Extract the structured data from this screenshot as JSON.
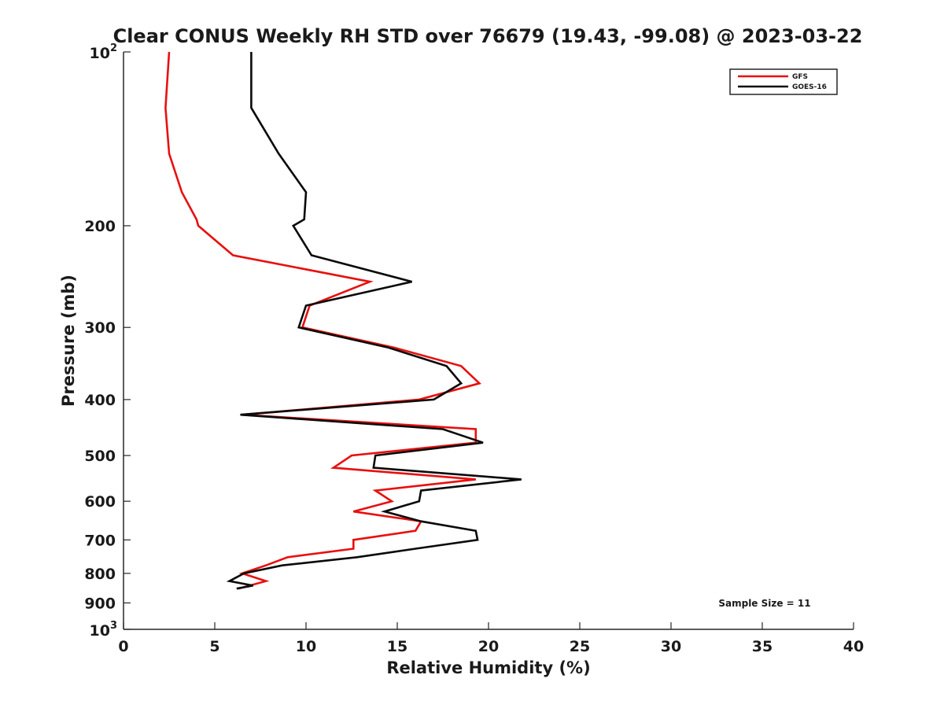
{
  "chart_data": {
    "type": "line",
    "title": "Clear CONUS Weekly RH STD over 76679 (19.43, -99.08) @ 2023-03-22",
    "xlabel": "Relative Humidity (%)",
    "ylabel": "Pressure (mb)",
    "xlim": [
      0,
      40
    ],
    "ylim": [
      100,
      1000
    ],
    "y_scale": "log",
    "y_reversed": true,
    "grid": false,
    "legend_position": "top-right",
    "x_ticks": [
      0,
      5,
      10,
      15,
      20,
      25,
      30,
      35,
      40
    ],
    "y_ticks": [
      {
        "value": 100,
        "base": "10",
        "exp": "2"
      },
      {
        "value": 200,
        "text": "200"
      },
      {
        "value": 300,
        "text": "300"
      },
      {
        "value": 400,
        "text": "400"
      },
      {
        "value": 500,
        "text": "500"
      },
      {
        "value": 600,
        "text": "600"
      },
      {
        "value": 700,
        "text": "700"
      },
      {
        "value": 800,
        "text": "800"
      },
      {
        "value": 900,
        "text": "900"
      },
      {
        "value": 1000,
        "base": "10",
        "exp": "3"
      }
    ],
    "annotation": "Sample Size = 11",
    "series": [
      {
        "name": "GFS",
        "color": "#e8100f",
        "points": [
          [
            2.5,
            100
          ],
          [
            2.3,
            125
          ],
          [
            2.5,
            150
          ],
          [
            3.2,
            175
          ],
          [
            4.0,
            195
          ],
          [
            4.1,
            200
          ],
          [
            6.0,
            225
          ],
          [
            13.5,
            250
          ],
          [
            10.2,
            275
          ],
          [
            9.8,
            300
          ],
          [
            14.8,
            325
          ],
          [
            18.5,
            350
          ],
          [
            19.5,
            375
          ],
          [
            16.2,
            400
          ],
          [
            6.5,
            425
          ],
          [
            19.3,
            450
          ],
          [
            19.3,
            475
          ],
          [
            12.5,
            500
          ],
          [
            11.5,
            525
          ],
          [
            19.3,
            550
          ],
          [
            13.8,
            575
          ],
          [
            14.7,
            600
          ],
          [
            12.6,
            625
          ],
          [
            16.3,
            650
          ],
          [
            16.0,
            675
          ],
          [
            12.6,
            700
          ],
          [
            12.6,
            725
          ],
          [
            9.0,
            750
          ],
          [
            7.8,
            775
          ],
          [
            6.5,
            800
          ],
          [
            7.8,
            825
          ],
          [
            6.3,
            850
          ]
        ]
      },
      {
        "name": "GOES-16",
        "color": "#0a0a0a",
        "points": [
          [
            7.0,
            100
          ],
          [
            7.0,
            125
          ],
          [
            8.5,
            150
          ],
          [
            10.0,
            175
          ],
          [
            9.9,
            195
          ],
          [
            9.3,
            200
          ],
          [
            10.3,
            225
          ],
          [
            15.8,
            250
          ],
          [
            10.0,
            275
          ],
          [
            9.6,
            300
          ],
          [
            14.5,
            325
          ],
          [
            17.7,
            350
          ],
          [
            18.5,
            375
          ],
          [
            17.0,
            400
          ],
          [
            6.4,
            425
          ],
          [
            17.5,
            450
          ],
          [
            19.7,
            475
          ],
          [
            13.8,
            500
          ],
          [
            13.7,
            525
          ],
          [
            21.8,
            550
          ],
          [
            16.3,
            575
          ],
          [
            16.2,
            600
          ],
          [
            14.3,
            625
          ],
          [
            16.3,
            650
          ],
          [
            19.3,
            675
          ],
          [
            19.4,
            700
          ],
          [
            16.0,
            725
          ],
          [
            12.8,
            750
          ],
          [
            8.7,
            775
          ],
          [
            6.6,
            800
          ],
          [
            5.8,
            825
          ],
          [
            7.1,
            840
          ],
          [
            6.2,
            850
          ]
        ]
      }
    ]
  }
}
